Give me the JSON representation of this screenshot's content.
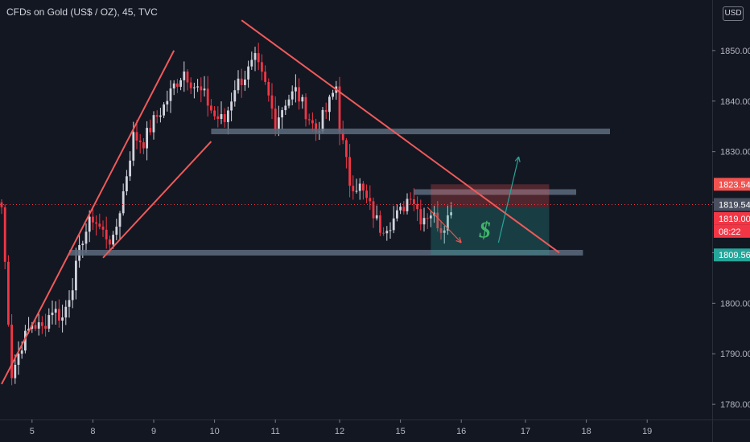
{
  "header": {
    "title": "CFDs on Gold (US$ / OZ), 45, TVC",
    "currency": "USD"
  },
  "colors": {
    "background": "#131722",
    "up": "#d1d4dc",
    "down": "#f23645",
    "trendline": "#f05a5a",
    "level": "#5d6b7e",
    "target": "#26a69a",
    "stop": "#ef5350",
    "price_line": "#f23645"
  },
  "badges": {
    "stop_price": "1823.54",
    "current_price": "1819.54",
    "entry_price": "1819.00",
    "countdown": "08:22",
    "target_price": "1809.56"
  },
  "chart_data": {
    "type": "candlestick",
    "title": "CFDs on Gold (US$ / OZ), 45, TVC",
    "instrument": "CFDs on Gold (US$ / OZ)",
    "interval": "45",
    "source": "TVC",
    "currency": "USD",
    "x_ticks": [
      "5",
      "8",
      "9",
      "10",
      "11",
      "12",
      "15",
      "16",
      "17",
      "18",
      "19"
    ],
    "y_ticks": [
      1780,
      1790,
      1800,
      1810,
      1820,
      1830,
      1840,
      1850
    ],
    "y_tick_labels": [
      "1780.00",
      "1790.00",
      "1800.00",
      "1810.00",
      "1820.00",
      "1830.00",
      "1840.00",
      "1850.00"
    ],
    "ylim": [
      1777,
      1860
    ],
    "close_path": [
      [
        0,
        1819
      ],
      [
        3,
        1786
      ],
      [
        6,
        1792
      ],
      [
        9,
        1796
      ],
      [
        12,
        1795
      ],
      [
        15,
        1799
      ],
      [
        18,
        1797
      ],
      [
        21,
        1804
      ],
      [
        24,
        1813
      ],
      [
        27,
        1817
      ],
      [
        30,
        1814
      ],
      [
        33,
        1812
      ],
      [
        36,
        1822
      ],
      [
        39,
        1833
      ],
      [
        42,
        1832
      ],
      [
        45,
        1836
      ],
      [
        48,
        1839
      ],
      [
        51,
        1843
      ],
      [
        54,
        1846
      ],
      [
        57,
        1843
      ],
      [
        60,
        1841
      ],
      [
        63,
        1837
      ],
      [
        66,
        1836
      ],
      [
        69,
        1843
      ],
      [
        72,
        1845
      ],
      [
        75,
        1848
      ],
      [
        78,
        1843
      ],
      [
        81,
        1836
      ],
      [
        84,
        1840
      ],
      [
        87,
        1842
      ],
      [
        90,
        1838
      ],
      [
        93,
        1834
      ],
      [
        96,
        1838
      ],
      [
        99,
        1843
      ],
      [
        100,
        1835
      ],
      [
        103,
        1824
      ],
      [
        106,
        1823
      ],
      [
        109,
        1819
      ],
      [
        112,
        1815
      ],
      [
        115,
        1816
      ],
      [
        118,
        1818
      ],
      [
        121,
        1822
      ],
      [
        124,
        1817
      ],
      [
        127,
        1818
      ],
      [
        130,
        1815
      ],
      [
        133,
        1818
      ]
    ],
    "trendlines": [
      {
        "from": [
          0,
          1784
        ],
        "to": [
          51,
          1850
        ],
        "color": "#f05a5a"
      },
      {
        "from": [
          30,
          1809
        ],
        "to": [
          62,
          1832
        ],
        "color": "#f05a5a"
      },
      {
        "from": [
          71,
          1856
        ],
        "to": [
          165,
          1810
        ],
        "color": "#f05a5a"
      }
    ],
    "horizontal_levels": [
      {
        "price": 1810,
        "from": 20,
        "to": 172
      },
      {
        "price": 1834,
        "from": 62,
        "to": 180
      },
      {
        "price": 1822,
        "from": 122,
        "to": 170
      }
    ],
    "position": {
      "type": "short",
      "entry": 1819.0,
      "stop": 1823.54,
      "target": 1809.56,
      "from": 127,
      "to": 162
    },
    "current_price": 1819.54,
    "countdown": "08:22",
    "annotations": [
      {
        "type": "arrow",
        "direction": "down",
        "from": [
          126,
          1819
        ],
        "to": [
          136,
          1812
        ]
      },
      {
        "type": "arrow",
        "direction": "up",
        "from": [
          147,
          1812
        ],
        "to": [
          153,
          1829
        ]
      },
      {
        "type": "text",
        "text": "$",
        "at": [
          143,
          1814
        ]
      }
    ]
  }
}
